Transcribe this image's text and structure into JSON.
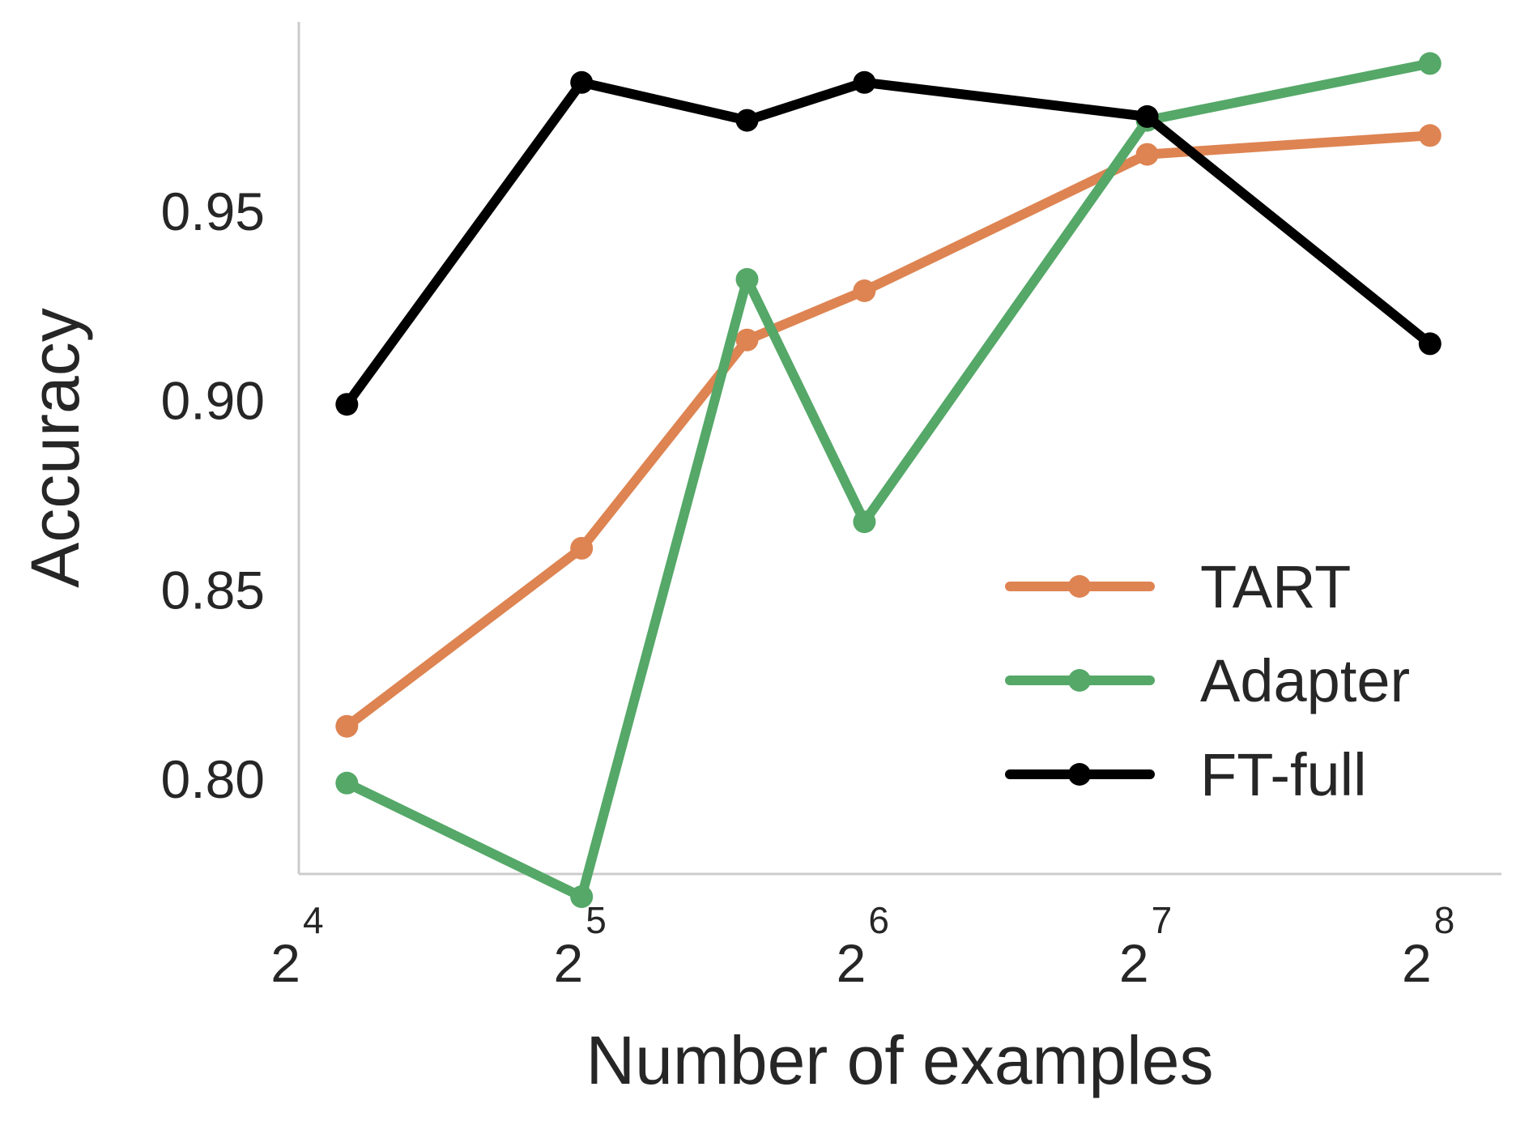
{
  "chart_data": {
    "type": "line",
    "xlabel": "Number of examples",
    "ylabel": "Accuracy",
    "x_scale": "log2",
    "xlim": [
      16,
      305
    ],
    "ylim": [
      0.775,
      1.0
    ],
    "grid": false,
    "legend_position": "bottom-right",
    "xticks": [
      {
        "value": 16,
        "base": "2",
        "exp": "4"
      },
      {
        "value": 32,
        "base": "2",
        "exp": "5"
      },
      {
        "value": 64,
        "base": "2",
        "exp": "6"
      },
      {
        "value": 128,
        "base": "2",
        "exp": "7"
      },
      {
        "value": 256,
        "base": "2",
        "exp": "8"
      }
    ],
    "yticks": [
      {
        "value": 0.8,
        "label": "0.80"
      },
      {
        "value": 0.85,
        "label": "0.85"
      },
      {
        "value": 0.9,
        "label": "0.90"
      },
      {
        "value": 0.95,
        "label": "0.95"
      }
    ],
    "x": [
      18,
      32,
      48,
      64,
      128,
      256
    ],
    "series": [
      {
        "name": "TART",
        "color": "#dd8452",
        "values": [
          0.814,
          0.861,
          0.916,
          0.929,
          0.965,
          0.97
        ]
      },
      {
        "name": "Adapter",
        "color": "#55a868",
        "values": [
          0.799,
          0.769,
          0.932,
          0.868,
          0.974,
          0.989
        ]
      },
      {
        "name": "FT-full",
        "color": "#000000",
        "values": [
          0.899,
          0.984,
          0.974,
          0.984,
          0.975,
          0.915
        ]
      }
    ]
  }
}
